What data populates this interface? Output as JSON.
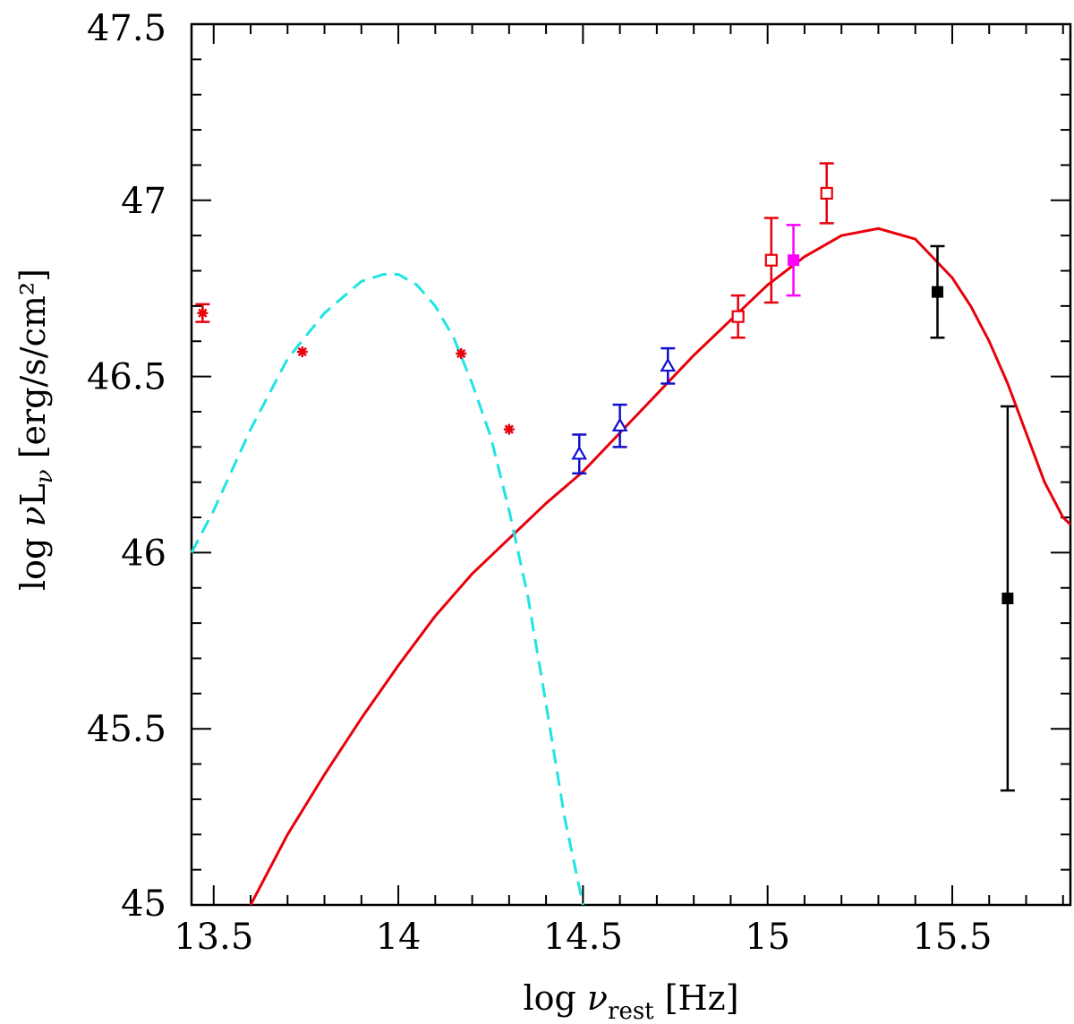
{
  "chart_data": {
    "type": "scatter",
    "title": "",
    "xlabel": {
      "prefix": "log ",
      "nu": "ν",
      "sub": "rest",
      "suffix": " [Hz]"
    },
    "ylabel": {
      "prefix": "log ",
      "nu": "ν",
      "L": "L",
      "sub": "ν",
      "suffix": " [erg/s/cm²]"
    },
    "xlim": [
      13.44,
      15.82
    ],
    "ylim": [
      45.0,
      47.5
    ],
    "x_ticks": [
      "13.5",
      "14",
      "14.5",
      "15",
      "15.5"
    ],
    "x_tick_values": [
      13.5,
      14.0,
      14.5,
      15.0,
      15.5
    ],
    "y_ticks": [
      "45",
      "45.5",
      "46",
      "46.5",
      "47",
      "47.5"
    ],
    "y_tick_values": [
      45.0,
      45.5,
      46.0,
      46.5,
      47.0,
      47.5
    ],
    "series": [
      {
        "name": "red asterisks",
        "marker": "asterisk",
        "color": "#e8000b",
        "points": [
          {
            "x": 13.47,
            "y": 46.68,
            "err": 0.025
          },
          {
            "x": 13.74,
            "y": 46.57,
            "err": 0.0
          },
          {
            "x": 14.17,
            "y": 46.565,
            "err": 0.0
          },
          {
            "x": 14.3,
            "y": 46.35,
            "err": 0.0
          }
        ]
      },
      {
        "name": "blue triangles",
        "marker": "triangle-open",
        "color": "#1010d0",
        "points": [
          {
            "x": 14.49,
            "y": 46.28,
            "err": 0.055
          },
          {
            "x": 14.6,
            "y": 46.36,
            "err": 0.06
          },
          {
            "x": 14.73,
            "y": 46.53,
            "err": 0.05
          }
        ]
      },
      {
        "name": "red open squares",
        "marker": "square-open",
        "color": "#e8000b",
        "points": [
          {
            "x": 14.92,
            "y": 46.67,
            "err": 0.06
          },
          {
            "x": 15.01,
            "y": 46.83,
            "err": 0.12
          },
          {
            "x": 15.16,
            "y": 47.02,
            "err": 0.085
          }
        ]
      },
      {
        "name": "magenta filled square",
        "marker": "square-filled",
        "color": "#ff00ff",
        "points": [
          {
            "x": 15.07,
            "y": 46.83,
            "err": 0.1
          }
        ]
      },
      {
        "name": "black filled squares",
        "marker": "square-filled",
        "color": "#000000",
        "points": [
          {
            "x": 15.46,
            "y": 46.74,
            "err": 0.13
          },
          {
            "x": 15.65,
            "y": 45.87,
            "err": 0.545
          }
        ]
      }
    ],
    "curves": [
      {
        "name": "accretion disk model",
        "style": "solid",
        "color": "#e8000b",
        "x": [
          13.6,
          13.7,
          13.8,
          13.9,
          14.0,
          14.1,
          14.2,
          14.3,
          14.4,
          14.5,
          14.6,
          14.7,
          14.8,
          14.9,
          15.0,
          15.1,
          15.2,
          15.3,
          15.4,
          15.5,
          15.55,
          15.6,
          15.65,
          15.7,
          15.75,
          15.8,
          15.82
        ],
        "y": [
          45.0,
          45.2,
          45.37,
          45.53,
          45.68,
          45.82,
          45.94,
          46.04,
          46.14,
          46.23,
          46.34,
          46.45,
          46.56,
          46.66,
          46.76,
          46.84,
          46.9,
          46.92,
          46.89,
          46.78,
          46.7,
          46.6,
          46.48,
          46.34,
          46.2,
          46.1,
          46.08
        ]
      },
      {
        "name": "dust blackbody",
        "style": "dashed",
        "color": "#1ee4e4",
        "x": [
          13.44,
          13.5,
          13.6,
          13.7,
          13.8,
          13.9,
          13.96,
          14.0,
          14.05,
          14.1,
          14.15,
          14.2,
          14.25,
          14.3,
          14.35,
          14.4,
          14.45,
          14.5
        ],
        "y": [
          46.0,
          46.12,
          46.35,
          46.55,
          46.68,
          46.77,
          46.79,
          46.79,
          46.76,
          46.7,
          46.61,
          46.48,
          46.33,
          46.12,
          45.88,
          45.57,
          45.25,
          45.0
        ]
      }
    ]
  }
}
